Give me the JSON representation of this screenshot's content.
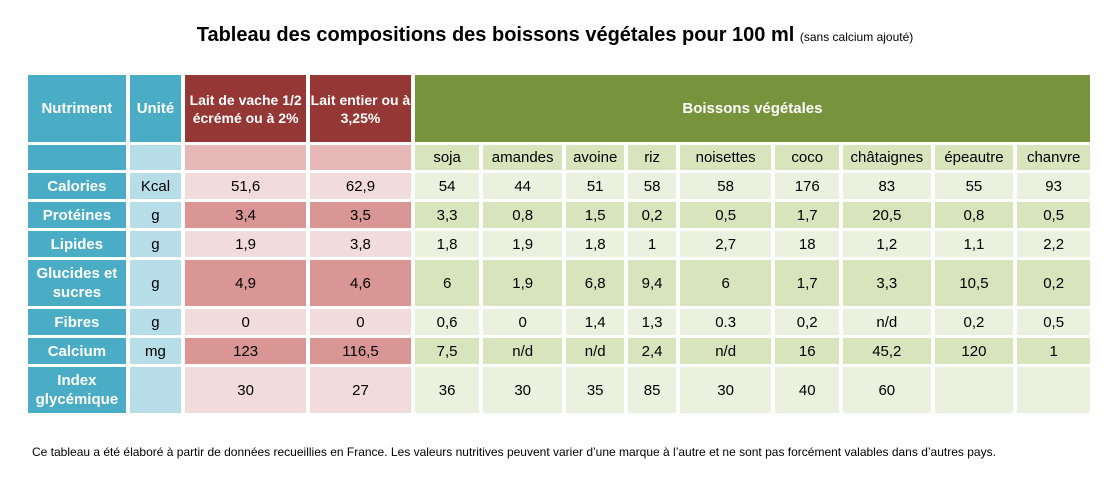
{
  "title": "Tableau des compositions des boissons végétales pour 100 ml",
  "subtitle": "(sans calcium ajouté)",
  "header": {
    "nutrient": "Nutriment",
    "unit": "Unité",
    "cow_semi": "Lait de vache 1/2 écrémé ou à 2%",
    "cow_whole": "Lait entier ou à 3,25%",
    "plant": "Boissons végétales"
  },
  "plant_names": [
    "soja",
    "amandes",
    "avoine",
    "riz",
    "noisettes",
    "coco",
    "châtaignes",
    "épeautre",
    "chanvre"
  ],
  "rows": [
    {
      "label": "Calories",
      "unit": "Kcal",
      "cow": [
        "51,6",
        "62,9"
      ],
      "plant": [
        "54",
        "44",
        "51",
        "58",
        "58",
        "176",
        "83",
        "55",
        "93"
      ]
    },
    {
      "label": "Protéines",
      "unit": "g",
      "cow": [
        "3,4",
        "3,5"
      ],
      "plant": [
        "3,3",
        "0,8",
        "1,5",
        "0,2",
        "0,5",
        "1,7",
        "20,5",
        "0,8",
        "0,5"
      ]
    },
    {
      "label": "Lipides",
      "unit": "g",
      "cow": [
        "1,9",
        "3,8"
      ],
      "plant": [
        "1,8",
        "1,9",
        "1,8",
        "1",
        "2,7",
        "18",
        "1,2",
        "1,1",
        "2,2"
      ]
    },
    {
      "label": "Glucides et sucres",
      "unit": "g",
      "cow": [
        "4,9",
        "4,6"
      ],
      "plant": [
        "6",
        "1,9",
        "6,8",
        "9,4",
        "6",
        "1,7",
        "3,3",
        "10,5",
        "0,2"
      ]
    },
    {
      "label": "Fibres",
      "unit": "g",
      "cow": [
        "0",
        "0"
      ],
      "plant": [
        "0,6",
        "0",
        "1,4",
        "1,3",
        "0.3",
        "0,2",
        "n/d",
        "0,2",
        "0,5"
      ]
    },
    {
      "label": "Calcium",
      "unit": "mg",
      "cow": [
        "123",
        "116,5"
      ],
      "plant": [
        "7,5",
        "n/d",
        "n/d",
        "2,4",
        "n/d",
        "16",
        "45,2",
        "120",
        "1"
      ]
    },
    {
      "label": "Index glycémique",
      "unit": "",
      "cow": [
        "30",
        "27"
      ],
      "plant": [
        "36",
        "30",
        "35",
        "85",
        "30",
        "40",
        "60",
        "",
        ""
      ]
    }
  ],
  "footnote": "Ce tableau a été élaboré à partir de données recueillies en France. Les valeurs nutritives peuvent varier d’une marque à l’autre et ne sont pas forcément valables dans d’autres pays.",
  "colors": {
    "blue_header": "#4bacc6",
    "light_blue": "#b7dee8",
    "dark_red_header": "#953735",
    "pink_dark": "#d99694",
    "pink_light": "#f2dcdb",
    "green_header": "#77933c",
    "green_dark": "#d7e4bc",
    "green_light": "#ebf1de"
  }
}
